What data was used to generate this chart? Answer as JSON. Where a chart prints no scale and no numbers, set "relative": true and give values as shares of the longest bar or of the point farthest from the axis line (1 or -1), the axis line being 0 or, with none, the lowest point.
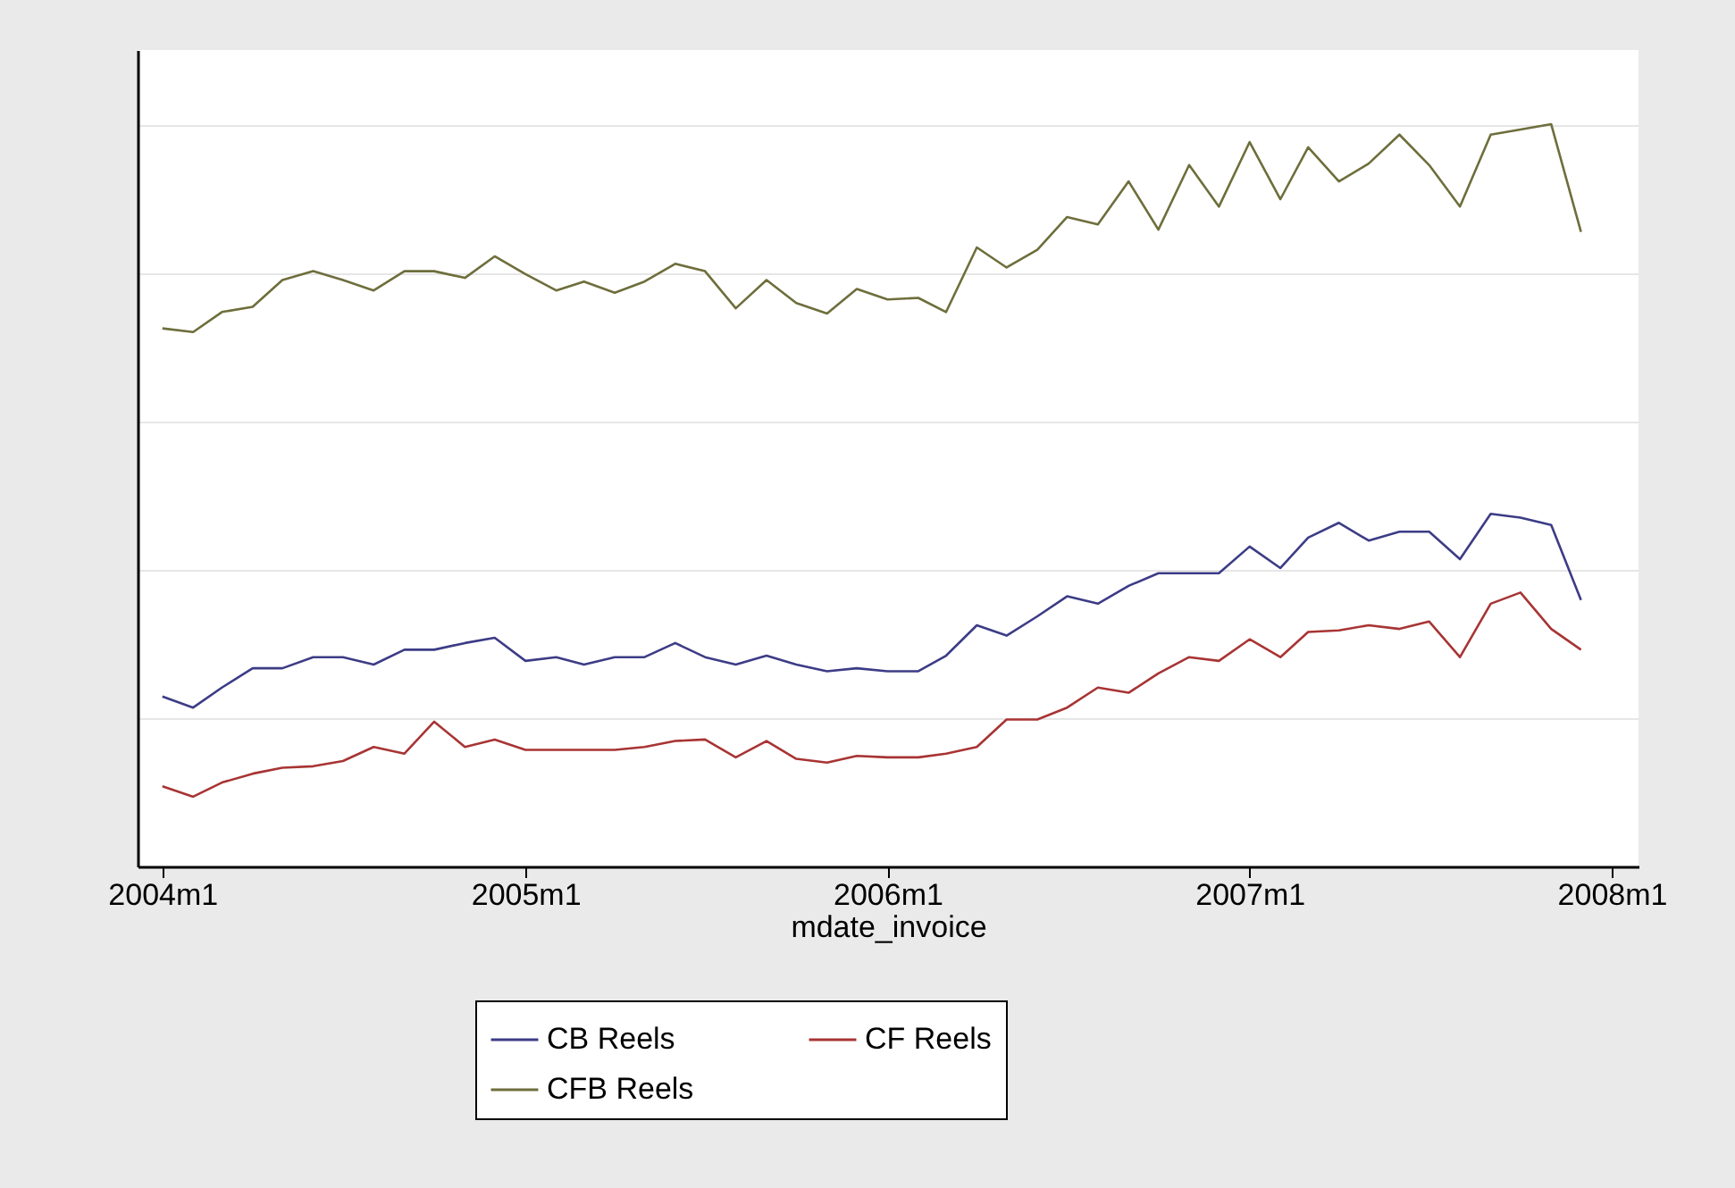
{
  "chart_data": {
    "type": "line",
    "xlabel": "mdate_invoice",
    "relative": true,
    "grid": "y",
    "legend": "bottom",
    "xlim": [
      "2003-12-07",
      "2008-01-28"
    ],
    "xticks": [
      {
        "value": "2004-01",
        "label": "2004m1"
      },
      {
        "value": "2005-01",
        "label": "2005m1"
      },
      {
        "value": "2006-01",
        "label": "2006m1"
      },
      {
        "value": "2007-01",
        "label": "2007m1"
      },
      {
        "value": "2008-01",
        "label": "2008m1"
      }
    ],
    "x": [
      "2004-01",
      "2004-02",
      "2004-03",
      "2004-04",
      "2004-05",
      "2004-06",
      "2004-07",
      "2004-08",
      "2004-09",
      "2004-10",
      "2004-11",
      "2004-12",
      "2005-01",
      "2005-02",
      "2005-03",
      "2005-04",
      "2005-05",
      "2005-06",
      "2005-07",
      "2005-08",
      "2005-09",
      "2005-10",
      "2005-11",
      "2005-12",
      "2006-01",
      "2006-02",
      "2006-03",
      "2006-04",
      "2006-05",
      "2006-06",
      "2006-07",
      "2006-08",
      "2006-09",
      "2006-10",
      "2006-11",
      "2006-12",
      "2007-01",
      "2007-02",
      "2007-03",
      "2007-04",
      "2007-05",
      "2007-06",
      "2007-07",
      "2007-08",
      "2007-09",
      "2007-10",
      "2007-11",
      "2007-12"
    ],
    "series": [
      {
        "name": "CB Reels",
        "color": "#3c3c86",
        "values": [
          0.229,
          0.214,
          0.241,
          0.267,
          0.267,
          0.282,
          0.282,
          0.272,
          0.292,
          0.292,
          0.301,
          0.308,
          0.277,
          0.282,
          0.272,
          0.282,
          0.282,
          0.301,
          0.282,
          0.272,
          0.284,
          0.272,
          0.263,
          0.267,
          0.263,
          0.263,
          0.284,
          0.325,
          0.311,
          0.337,
          0.364,
          0.354,
          0.378,
          0.395,
          0.395,
          0.395,
          0.431,
          0.402,
          0.443,
          0.463,
          0.439,
          0.451,
          0.451,
          0.414,
          0.475,
          0.47,
          0.46,
          0.359
        ]
      },
      {
        "name": "CF Reels",
        "color": "#a83434",
        "values": [
          0.108,
          0.094,
          0.113,
          0.125,
          0.133,
          0.135,
          0.142,
          0.161,
          0.152,
          0.195,
          0.161,
          0.171,
          0.157,
          0.157,
          0.157,
          0.157,
          0.161,
          0.169,
          0.171,
          0.147,
          0.169,
          0.145,
          0.14,
          0.149,
          0.147,
          0.147,
          0.152,
          0.161,
          0.198,
          0.198,
          0.214,
          0.241,
          0.234,
          0.26,
          0.282,
          0.277,
          0.306,
          0.282,
          0.316,
          0.318,
          0.325,
          0.32,
          0.33,
          0.282,
          0.354,
          0.369,
          0.32,
          0.292
        ]
      },
      {
        "name": "CFB Reels",
        "color": "#6e6e3c",
        "values": [
          0.725,
          0.72,
          0.747,
          0.754,
          0.79,
          0.802,
          0.79,
          0.776,
          0.802,
          0.802,
          0.793,
          0.822,
          0.798,
          0.776,
          0.788,
          0.773,
          0.788,
          0.812,
          0.802,
          0.752,
          0.79,
          0.759,
          0.745,
          0.778,
          0.764,
          0.766,
          0.747,
          0.834,
          0.807,
          0.831,
          0.875,
          0.865,
          0.923,
          0.858,
          0.945,
          0.889,
          0.976,
          0.899,
          0.969,
          0.923,
          0.947,
          0.986,
          0.945,
          0.889,
          0.986,
          0.993,
          1,
          0.855
        ]
      }
    ]
  }
}
